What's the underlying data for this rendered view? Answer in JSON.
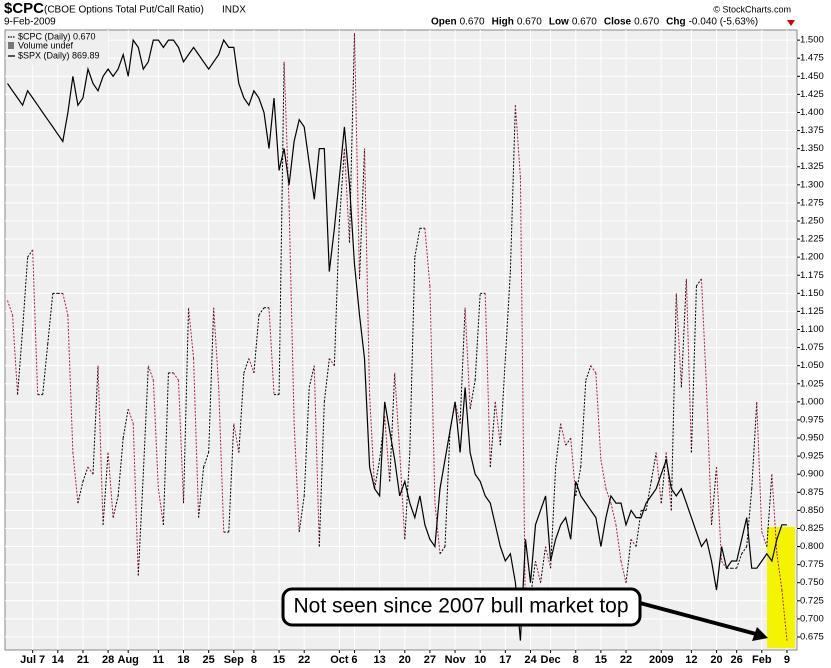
{
  "chart_data": {
    "type": "line",
    "title": "$CPC",
    "subtitle": "(CBOE Options Total Put/Call Ratio)",
    "exchange": "INDX",
    "date": "9-Feb-2009",
    "quote": [
      {
        "label": "Open",
        "value": "0.670"
      },
      {
        "label": "High",
        "value": "0.670"
      },
      {
        "label": "Low",
        "value": "0.670"
      },
      {
        "label": "Close",
        "value": "0.670"
      },
      {
        "label": "Chg",
        "value": "-0.040 (-5.63%)"
      }
    ],
    "copyright": "© StockCharts.com",
    "legend_extra": "Volume undef",
    "annotation": "Not seen since 2007 bull market top",
    "series": [
      {
        "name": "$CPC (Daily) 0.670",
        "color": "#000000",
        "down_color": "#b0203c",
        "dash": "dotted",
        "values": [
          1.14,
          1.12,
          1.01,
          1.1,
          1.2,
          1.21,
          1.01,
          1.01,
          1.08,
          1.15,
          1.15,
          1.15,
          1.12,
          0.93,
          0.86,
          0.89,
          0.91,
          0.9,
          1.05,
          0.83,
          0.93,
          0.84,
          0.87,
          0.95,
          0.99,
          0.97,
          0.76,
          0.9,
          1.05,
          1.03,
          0.88,
          0.83,
          1.04,
          1.04,
          1.03,
          0.86,
          1.13,
          1.06,
          0.84,
          0.91,
          0.93,
          1.13,
          1.02,
          0.82,
          0.82,
          0.97,
          0.93,
          1.04,
          1.06,
          1.04,
          1.12,
          1.13,
          1.13,
          1.01,
          1.01,
          1.47,
          1.27,
          0.97,
          0.82,
          0.87,
          1.02,
          1.05,
          0.8,
          1.0,
          1.06,
          1.05,
          1.25,
          1.35,
          1.22,
          1.51,
          1.17,
          1.35,
          1.01,
          0.88,
          0.92,
          0.98,
          0.89,
          1.04,
          0.93,
          0.81,
          0.93,
          1.2,
          1.24,
          1.24,
          1.16,
          0.86,
          0.79,
          0.8,
          0.96,
          1.0,
          0.97,
          1.13,
          0.99,
          1.03,
          1.15,
          1.15,
          0.91,
          1.0,
          0.94,
          1.06,
          1.18,
          1.41,
          1.31,
          0.69,
          0.73,
          0.78,
          0.75,
          0.8,
          0.77,
          0.91,
          0.97,
          0.94,
          0.95,
          0.87,
          0.91,
          1.03,
          1.05,
          1.04,
          0.92,
          0.88,
          0.86,
          0.83,
          0.78,
          0.75,
          0.81,
          0.8,
          0.85,
          0.85,
          0.89,
          0.93,
          0.86,
          0.93,
          0.85,
          1.15,
          1.02,
          1.17,
          0.93,
          1.16,
          1.17,
          1.02,
          0.83,
          0.91,
          0.78,
          0.77,
          0.77,
          0.77,
          0.79,
          0.8,
          0.88,
          1.0,
          0.82,
          0.8,
          0.9,
          0.79,
          0.74,
          0.67
        ]
      },
      {
        "name": "$SPX (Daily) 869.89",
        "color": "#000000",
        "values": [
          1.44,
          1.43,
          1.42,
          1.41,
          1.43,
          1.42,
          1.41,
          1.4,
          1.39,
          1.38,
          1.37,
          1.36,
          1.4,
          1.45,
          1.41,
          1.42,
          1.46,
          1.44,
          1.43,
          1.45,
          1.46,
          1.45,
          1.46,
          1.48,
          1.45,
          1.5,
          1.49,
          1.46,
          1.47,
          1.5,
          1.5,
          1.49,
          1.5,
          1.5,
          1.49,
          1.47,
          1.48,
          1.49,
          1.48,
          1.47,
          1.46,
          1.47,
          1.48,
          1.5,
          1.49,
          1.49,
          1.44,
          1.42,
          1.41,
          1.43,
          1.42,
          1.4,
          1.35,
          1.42,
          1.32,
          1.35,
          1.3,
          1.36,
          1.39,
          1.38,
          1.33,
          1.28,
          1.35,
          1.35,
          1.18,
          1.24,
          1.31,
          1.38,
          1.3,
          1.19,
          1.12,
          1.06,
          0.91,
          0.88,
          0.87,
          1.0,
          0.96,
          0.92,
          0.87,
          0.89,
          0.86,
          0.84,
          0.87,
          0.83,
          0.81,
          0.8,
          0.88,
          0.92,
          0.96,
          1.0,
          0.93,
          1.02,
          0.93,
          0.9,
          0.89,
          0.87,
          0.86,
          0.83,
          0.8,
          0.78,
          0.79,
          0.75,
          0.67,
          0.81,
          0.75,
          0.83,
          0.85,
          0.87,
          0.78,
          0.81,
          0.83,
          0.84,
          0.81,
          0.89,
          0.87,
          0.86,
          0.85,
          0.84,
          0.8,
          0.84,
          0.87,
          0.86,
          0.86,
          0.83,
          0.85,
          0.84,
          0.84,
          0.86,
          0.87,
          0.88,
          0.9,
          0.92,
          0.88,
          0.87,
          0.88,
          0.86,
          0.84,
          0.82,
          0.8,
          0.81,
          0.78,
          0.74,
          0.8,
          0.77,
          0.78,
          0.78,
          0.81,
          0.84,
          0.77,
          0.77,
          0.78,
          0.79,
          0.78,
          0.81,
          0.83,
          0.83
        ]
      }
    ],
    "xlim": [
      -0.5,
      157
    ],
    "xticks": [
      {
        "value": 5,
        "label": "Jul 7"
      },
      {
        "value": 10,
        "label": "14"
      },
      {
        "value": 15,
        "label": "21"
      },
      {
        "value": 20,
        "label": "28"
      },
      {
        "value": 24,
        "label": "Aug"
      },
      {
        "value": 30,
        "label": "11"
      },
      {
        "value": 35,
        "label": "18"
      },
      {
        "value": 40,
        "label": "25"
      },
      {
        "value": 45,
        "label": "Sep"
      },
      {
        "value": 49,
        "label": "8"
      },
      {
        "value": 54,
        "label": "15"
      },
      {
        "value": 59,
        "label": "22"
      },
      {
        "value": 66,
        "label": "Oct"
      },
      {
        "value": 69,
        "label": "6"
      },
      {
        "value": 74,
        "label": "13"
      },
      {
        "value": 79,
        "label": "20"
      },
      {
        "value": 84,
        "label": "27"
      },
      {
        "value": 89,
        "label": "Nov"
      },
      {
        "value": 94,
        "label": "10"
      },
      {
        "value": 99,
        "label": "17"
      },
      {
        "value": 104,
        "label": "24"
      },
      {
        "value": 108,
        "label": "Dec"
      },
      {
        "value": 113,
        "label": "8"
      },
      {
        "value": 118,
        "label": "15"
      },
      {
        "value": 123,
        "label": "22"
      },
      {
        "value": 130,
        "label": "2009"
      },
      {
        "value": 136,
        "label": "12"
      },
      {
        "value": 141,
        "label": "20"
      },
      {
        "value": 145,
        "label": "26"
      },
      {
        "value": 150,
        "label": "Feb"
      },
      {
        "value": 155,
        "label": "9"
      }
    ],
    "ylim": [
      0.657,
      1.514
    ],
    "yticks": [
      {
        "value": 0.675,
        "label": "0.675"
      },
      {
        "value": 0.7,
        "label": "0.700"
      },
      {
        "value": 0.725,
        "label": "0.725"
      },
      {
        "value": 0.75,
        "label": "0.750"
      },
      {
        "value": 0.775,
        "label": "0.775"
      },
      {
        "value": 0.8,
        "label": "0.800"
      },
      {
        "value": 0.825,
        "label": "0.825"
      },
      {
        "value": 0.85,
        "label": "0.850"
      },
      {
        "value": 0.875,
        "label": "0.875"
      },
      {
        "value": 0.9,
        "label": "0.900"
      },
      {
        "value": 0.925,
        "label": "0.925"
      },
      {
        "value": 0.95,
        "label": "0.950"
      },
      {
        "value": 0.975,
        "label": "0.975"
      },
      {
        "value": 1.0,
        "label": "1.000"
      },
      {
        "value": 1.025,
        "label": "1.025"
      },
      {
        "value": 1.05,
        "label": "1.050"
      },
      {
        "value": 1.075,
        "label": "1.075"
      },
      {
        "value": 1.1,
        "label": "1.100"
      },
      {
        "value": 1.125,
        "label": "1.125"
      },
      {
        "value": 1.15,
        "label": "1.150"
      },
      {
        "value": 1.175,
        "label": "1.175"
      },
      {
        "value": 1.2,
        "label": "1.200"
      },
      {
        "value": 1.225,
        "label": "1.225"
      },
      {
        "value": 1.25,
        "label": "1.250"
      },
      {
        "value": 1.275,
        "label": "1.275"
      },
      {
        "value": 1.3,
        "label": "1.300"
      },
      {
        "value": 1.325,
        "label": "1.325"
      },
      {
        "value": 1.35,
        "label": "1.350"
      },
      {
        "value": 1.375,
        "label": "1.375"
      },
      {
        "value": 1.4,
        "label": "1.400"
      },
      {
        "value": 1.425,
        "label": "1.425"
      },
      {
        "value": 1.45,
        "label": "1.450"
      },
      {
        "value": 1.475,
        "label": "1.475"
      },
      {
        "value": 1.5,
        "label": "1.500"
      }
    ],
    "grid": true
  }
}
